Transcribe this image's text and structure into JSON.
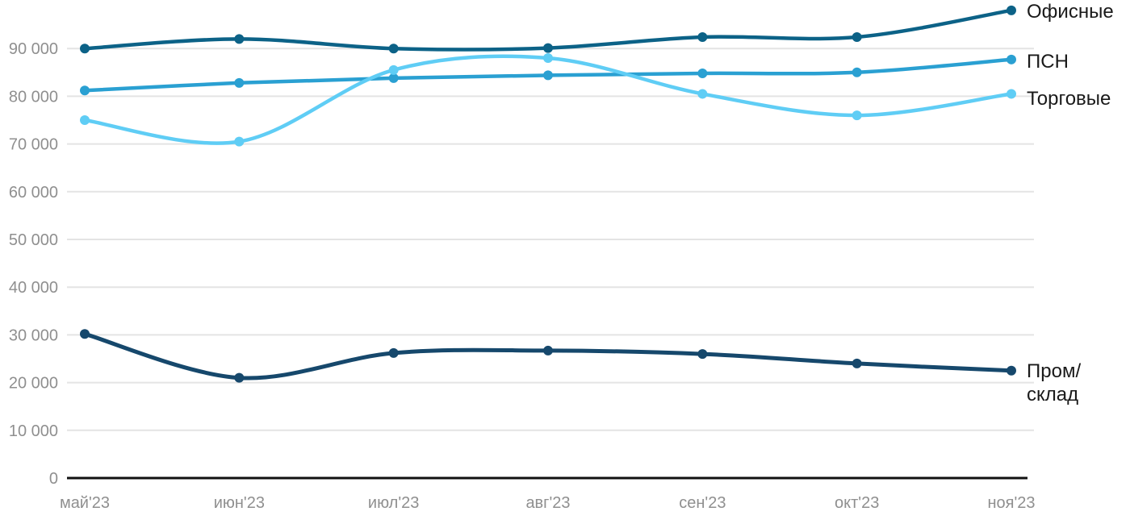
{
  "chart_data": {
    "type": "line",
    "title": "",
    "x_categories": [
      "май'23",
      "июн'23",
      "июл'23",
      "авг'23",
      "сен'23",
      "окт'23",
      "ноя'23"
    ],
    "series": [
      {
        "name": "Офисные",
        "label": "Офисные",
        "color": "#0c6287",
        "values": [
          90000,
          92000,
          90000,
          90100,
          92400,
          92400,
          98000
        ]
      },
      {
        "name": "ПСН",
        "label": "ПСН",
        "color": "#2aa0d2",
        "values": [
          81200,
          82800,
          83800,
          84400,
          84800,
          85000,
          87700
        ]
      },
      {
        "name": "Торговые",
        "label": "Торговые",
        "color": "#5fcdf5",
        "values": [
          75000,
          70500,
          85500,
          88000,
          80500,
          76000,
          80500
        ]
      },
      {
        "name": "Пром/склад",
        "label": "Пром/\nсклад",
        "color": "#16486c",
        "values": [
          30200,
          21000,
          26200,
          26700,
          26000,
          24000,
          22500
        ]
      }
    ],
    "y_axis": {
      "ticks": [
        0,
        10000,
        20000,
        30000,
        40000,
        50000,
        60000,
        70000,
        80000,
        90000
      ],
      "tick_labels": [
        "0",
        "10 000",
        "20 000",
        "30 000",
        "40 000",
        "50 000",
        "60 000",
        "70 000",
        "80 000",
        "90 000"
      ],
      "range": [
        0,
        100000
      ]
    },
    "grid": true,
    "legend_position": "right-end-of-lines",
    "smooth": true,
    "markers": true
  },
  "colors": {
    "background": "#ffffff",
    "grid": "#e4e4e4",
    "axis_line": "#111111",
    "tick_text": "#8f8f8f",
    "label_text": "#1a1a1a"
  }
}
